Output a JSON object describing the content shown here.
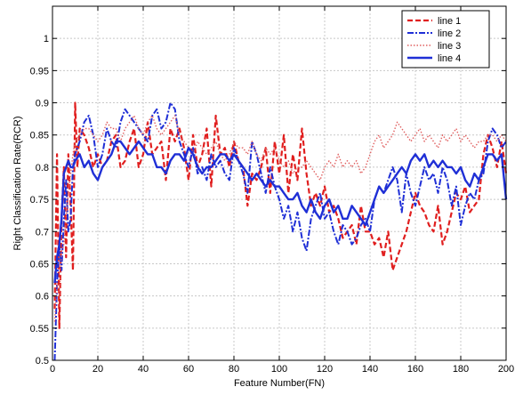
{
  "chart_data": {
    "type": "line",
    "title": "",
    "xlabel": "Feature Number(FN)",
    "ylabel": "Right Classification Rate(RCR)",
    "xlim": [
      0,
      200
    ],
    "ylim": [
      0.5,
      1.05
    ],
    "grid": true,
    "legend_position": "top-right",
    "x_ticks": [
      0,
      20,
      40,
      60,
      80,
      100,
      120,
      140,
      160,
      180,
      200
    ],
    "y_ticks": [
      0.5,
      0.55,
      0.6,
      0.65,
      0.7,
      0.75,
      0.8,
      0.85,
      0.9,
      0.95,
      1
    ],
    "x_tick_labels": [
      "0",
      "20",
      "40",
      "60",
      "80",
      "100",
      "120",
      "140",
      "160",
      "180",
      "200"
    ],
    "y_tick_labels": [
      "0.5",
      "0.55",
      "0.6",
      "0.65",
      "0.7",
      "0.75",
      "0.8",
      "0.85",
      "0.9",
      "0.95",
      "1"
    ],
    "series": [
      {
        "name": "line 1",
        "color": "#e01f1f",
        "dash": "6,3",
        "width": 2.2,
        "x": [
          1,
          2,
          3,
          4,
          5,
          6,
          7,
          8,
          9,
          10,
          11,
          12,
          14,
          16,
          18,
          20,
          22,
          24,
          26,
          28,
          30,
          32,
          34,
          36,
          38,
          40,
          42,
          44,
          46,
          48,
          50,
          52,
          54,
          56,
          58,
          60,
          62,
          64,
          66,
          68,
          70,
          72,
          74,
          76,
          78,
          80,
          82,
          84,
          86,
          88,
          90,
          92,
          94,
          96,
          98,
          100,
          102,
          104,
          106,
          108,
          110,
          112,
          114,
          116,
          118,
          120,
          122,
          124,
          126,
          128,
          130,
          132,
          134,
          136,
          138,
          140,
          142,
          144,
          146,
          148,
          150,
          152,
          154,
          156,
          158,
          160,
          162,
          164,
          166,
          168,
          170,
          172,
          174,
          176,
          178,
          180,
          182,
          184,
          186,
          188,
          190,
          192,
          194,
          196,
          198,
          200
        ],
        "values": [
          0.58,
          0.82,
          0.55,
          0.72,
          0.8,
          0.66,
          0.82,
          0.74,
          0.64,
          0.9,
          0.8,
          0.86,
          0.85,
          0.83,
          0.8,
          0.82,
          0.8,
          0.81,
          0.84,
          0.85,
          0.8,
          0.81,
          0.84,
          0.86,
          0.8,
          0.82,
          0.87,
          0.82,
          0.83,
          0.84,
          0.78,
          0.86,
          0.84,
          0.86,
          0.83,
          0.78,
          0.85,
          0.8,
          0.82,
          0.86,
          0.77,
          0.88,
          0.82,
          0.83,
          0.8,
          0.84,
          0.81,
          0.8,
          0.74,
          0.79,
          0.78,
          0.8,
          0.83,
          0.76,
          0.84,
          0.79,
          0.85,
          0.76,
          0.82,
          0.78,
          0.86,
          0.79,
          0.74,
          0.76,
          0.74,
          0.77,
          0.73,
          0.74,
          0.72,
          0.69,
          0.7,
          0.71,
          0.68,
          0.74,
          0.7,
          0.7,
          0.68,
          0.69,
          0.66,
          0.7,
          0.64,
          0.66,
          0.68,
          0.7,
          0.73,
          0.76,
          0.74,
          0.73,
          0.71,
          0.7,
          0.74,
          0.68,
          0.7,
          0.73,
          0.76,
          0.75,
          0.77,
          0.73,
          0.74,
          0.75,
          0.82,
          0.85,
          0.83,
          0.8,
          0.84,
          0.79
        ]
      },
      {
        "name": "line 2",
        "color": "#1f2fd6",
        "dash": "7,2,2,2",
        "width": 2.0,
        "x": [
          1,
          2,
          3,
          4,
          5,
          6,
          7,
          8,
          9,
          10,
          12,
          14,
          16,
          18,
          20,
          22,
          24,
          26,
          28,
          30,
          32,
          34,
          36,
          38,
          40,
          42,
          44,
          46,
          48,
          50,
          52,
          54,
          56,
          58,
          60,
          62,
          64,
          66,
          68,
          70,
          72,
          74,
          76,
          78,
          80,
          82,
          84,
          86,
          88,
          90,
          92,
          94,
          96,
          98,
          100,
          102,
          104,
          106,
          108,
          110,
          112,
          114,
          116,
          118,
          120,
          122,
          124,
          126,
          128,
          130,
          132,
          134,
          136,
          138,
          140,
          142,
          144,
          146,
          148,
          150,
          152,
          154,
          156,
          158,
          160,
          162,
          164,
          166,
          168,
          170,
          172,
          174,
          176,
          178,
          180,
          182,
          184,
          186,
          188,
          190,
          192,
          194,
          196,
          198,
          200
        ],
        "values": [
          0.5,
          0.62,
          0.68,
          0.64,
          0.72,
          0.78,
          0.7,
          0.72,
          0.8,
          0.82,
          0.84,
          0.87,
          0.88,
          0.85,
          0.8,
          0.82,
          0.86,
          0.84,
          0.83,
          0.87,
          0.89,
          0.88,
          0.87,
          0.86,
          0.85,
          0.84,
          0.88,
          0.89,
          0.86,
          0.87,
          0.9,
          0.89,
          0.84,
          0.82,
          0.8,
          0.83,
          0.79,
          0.8,
          0.78,
          0.82,
          0.8,
          0.81,
          0.79,
          0.78,
          0.83,
          0.81,
          0.79,
          0.76,
          0.84,
          0.82,
          0.79,
          0.76,
          0.8,
          0.77,
          0.75,
          0.72,
          0.74,
          0.7,
          0.73,
          0.69,
          0.67,
          0.72,
          0.74,
          0.76,
          0.72,
          0.73,
          0.7,
          0.68,
          0.71,
          0.7,
          0.68,
          0.69,
          0.71,
          0.72,
          0.7,
          0.75,
          0.77,
          0.76,
          0.78,
          0.8,
          0.78,
          0.73,
          0.79,
          0.76,
          0.74,
          0.77,
          0.8,
          0.78,
          0.79,
          0.76,
          0.8,
          0.78,
          0.74,
          0.77,
          0.71,
          0.74,
          0.76,
          0.75,
          0.78,
          0.79,
          0.84,
          0.86,
          0.85,
          0.83,
          0.84
        ]
      },
      {
        "name": "line 3",
        "color": "#e06060",
        "dash": "1.5,2",
        "width": 1.4,
        "x": [
          1,
          2,
          3,
          4,
          5,
          6,
          7,
          8,
          9,
          10,
          12,
          14,
          16,
          18,
          20,
          22,
          24,
          26,
          28,
          30,
          32,
          34,
          36,
          38,
          40,
          42,
          44,
          46,
          48,
          50,
          52,
          54,
          56,
          58,
          60,
          62,
          64,
          66,
          68,
          70,
          72,
          74,
          76,
          78,
          80,
          82,
          84,
          86,
          88,
          90,
          92,
          94,
          96,
          98,
          100,
          102,
          104,
          106,
          108,
          110,
          112,
          114,
          116,
          118,
          120,
          122,
          124,
          126,
          128,
          130,
          132,
          134,
          136,
          138,
          140,
          142,
          144,
          146,
          148,
          150,
          152,
          154,
          156,
          158,
          160,
          162,
          164,
          166,
          168,
          170,
          172,
          174,
          176,
          178,
          180,
          182,
          184,
          186,
          188,
          190,
          192,
          194,
          196,
          198,
          200
        ],
        "values": [
          0.56,
          0.62,
          0.6,
          0.67,
          0.68,
          0.72,
          0.76,
          0.79,
          0.82,
          0.84,
          0.85,
          0.86,
          0.86,
          0.85,
          0.84,
          0.85,
          0.87,
          0.86,
          0.86,
          0.84,
          0.86,
          0.87,
          0.88,
          0.86,
          0.85,
          0.87,
          0.88,
          0.86,
          0.85,
          0.86,
          0.87,
          0.88,
          0.85,
          0.84,
          0.83,
          0.82,
          0.84,
          0.83,
          0.82,
          0.83,
          0.84,
          0.82,
          0.81,
          0.82,
          0.84,
          0.83,
          0.83,
          0.82,
          0.84,
          0.82,
          0.81,
          0.83,
          0.82,
          0.83,
          0.81,
          0.8,
          0.81,
          0.79,
          0.8,
          0.8,
          0.81,
          0.8,
          0.79,
          0.78,
          0.8,
          0.81,
          0.8,
          0.82,
          0.8,
          0.81,
          0.8,
          0.81,
          0.79,
          0.8,
          0.82,
          0.84,
          0.85,
          0.83,
          0.84,
          0.85,
          0.87,
          0.86,
          0.85,
          0.84,
          0.85,
          0.86,
          0.84,
          0.85,
          0.84,
          0.83,
          0.85,
          0.84,
          0.85,
          0.86,
          0.84,
          0.85,
          0.84,
          0.83,
          0.84,
          0.84,
          0.85,
          0.85,
          0.84,
          0.85,
          0.84
        ]
      },
      {
        "name": "line 4",
        "color": "#1f2fd6",
        "dash": "",
        "width": 2.4,
        "x": [
          1,
          2,
          3,
          4,
          5,
          6,
          7,
          8,
          9,
          10,
          12,
          14,
          16,
          18,
          20,
          22,
          24,
          26,
          28,
          30,
          32,
          34,
          36,
          38,
          40,
          42,
          44,
          46,
          48,
          50,
          52,
          54,
          56,
          58,
          60,
          62,
          64,
          66,
          68,
          70,
          72,
          74,
          76,
          78,
          80,
          82,
          84,
          86,
          88,
          90,
          92,
          94,
          96,
          98,
          100,
          102,
          104,
          106,
          108,
          110,
          112,
          114,
          116,
          118,
          120,
          122,
          124,
          126,
          128,
          130,
          132,
          134,
          136,
          138,
          140,
          142,
          144,
          146,
          148,
          150,
          152,
          154,
          156,
          158,
          160,
          162,
          164,
          166,
          168,
          170,
          172,
          174,
          176,
          178,
          180,
          182,
          184,
          186,
          188,
          190,
          192,
          194,
          196,
          198,
          200
        ],
        "values": [
          0.62,
          0.66,
          0.68,
          0.72,
          0.79,
          0.8,
          0.81,
          0.8,
          0.8,
          0.81,
          0.82,
          0.8,
          0.81,
          0.79,
          0.78,
          0.8,
          0.81,
          0.82,
          0.84,
          0.84,
          0.83,
          0.82,
          0.83,
          0.84,
          0.83,
          0.82,
          0.82,
          0.8,
          0.8,
          0.79,
          0.81,
          0.82,
          0.82,
          0.81,
          0.83,
          0.82,
          0.8,
          0.79,
          0.8,
          0.8,
          0.81,
          0.82,
          0.82,
          0.81,
          0.82,
          0.81,
          0.8,
          0.79,
          0.78,
          0.79,
          0.78,
          0.77,
          0.78,
          0.77,
          0.77,
          0.76,
          0.75,
          0.75,
          0.76,
          0.74,
          0.73,
          0.75,
          0.73,
          0.72,
          0.74,
          0.75,
          0.73,
          0.74,
          0.72,
          0.72,
          0.74,
          0.73,
          0.72,
          0.71,
          0.73,
          0.75,
          0.77,
          0.76,
          0.77,
          0.78,
          0.79,
          0.8,
          0.79,
          0.81,
          0.82,
          0.81,
          0.82,
          0.8,
          0.81,
          0.8,
          0.81,
          0.8,
          0.8,
          0.79,
          0.8,
          0.78,
          0.77,
          0.79,
          0.78,
          0.8,
          0.82,
          0.82,
          0.81,
          0.82,
          0.75
        ]
      }
    ]
  }
}
